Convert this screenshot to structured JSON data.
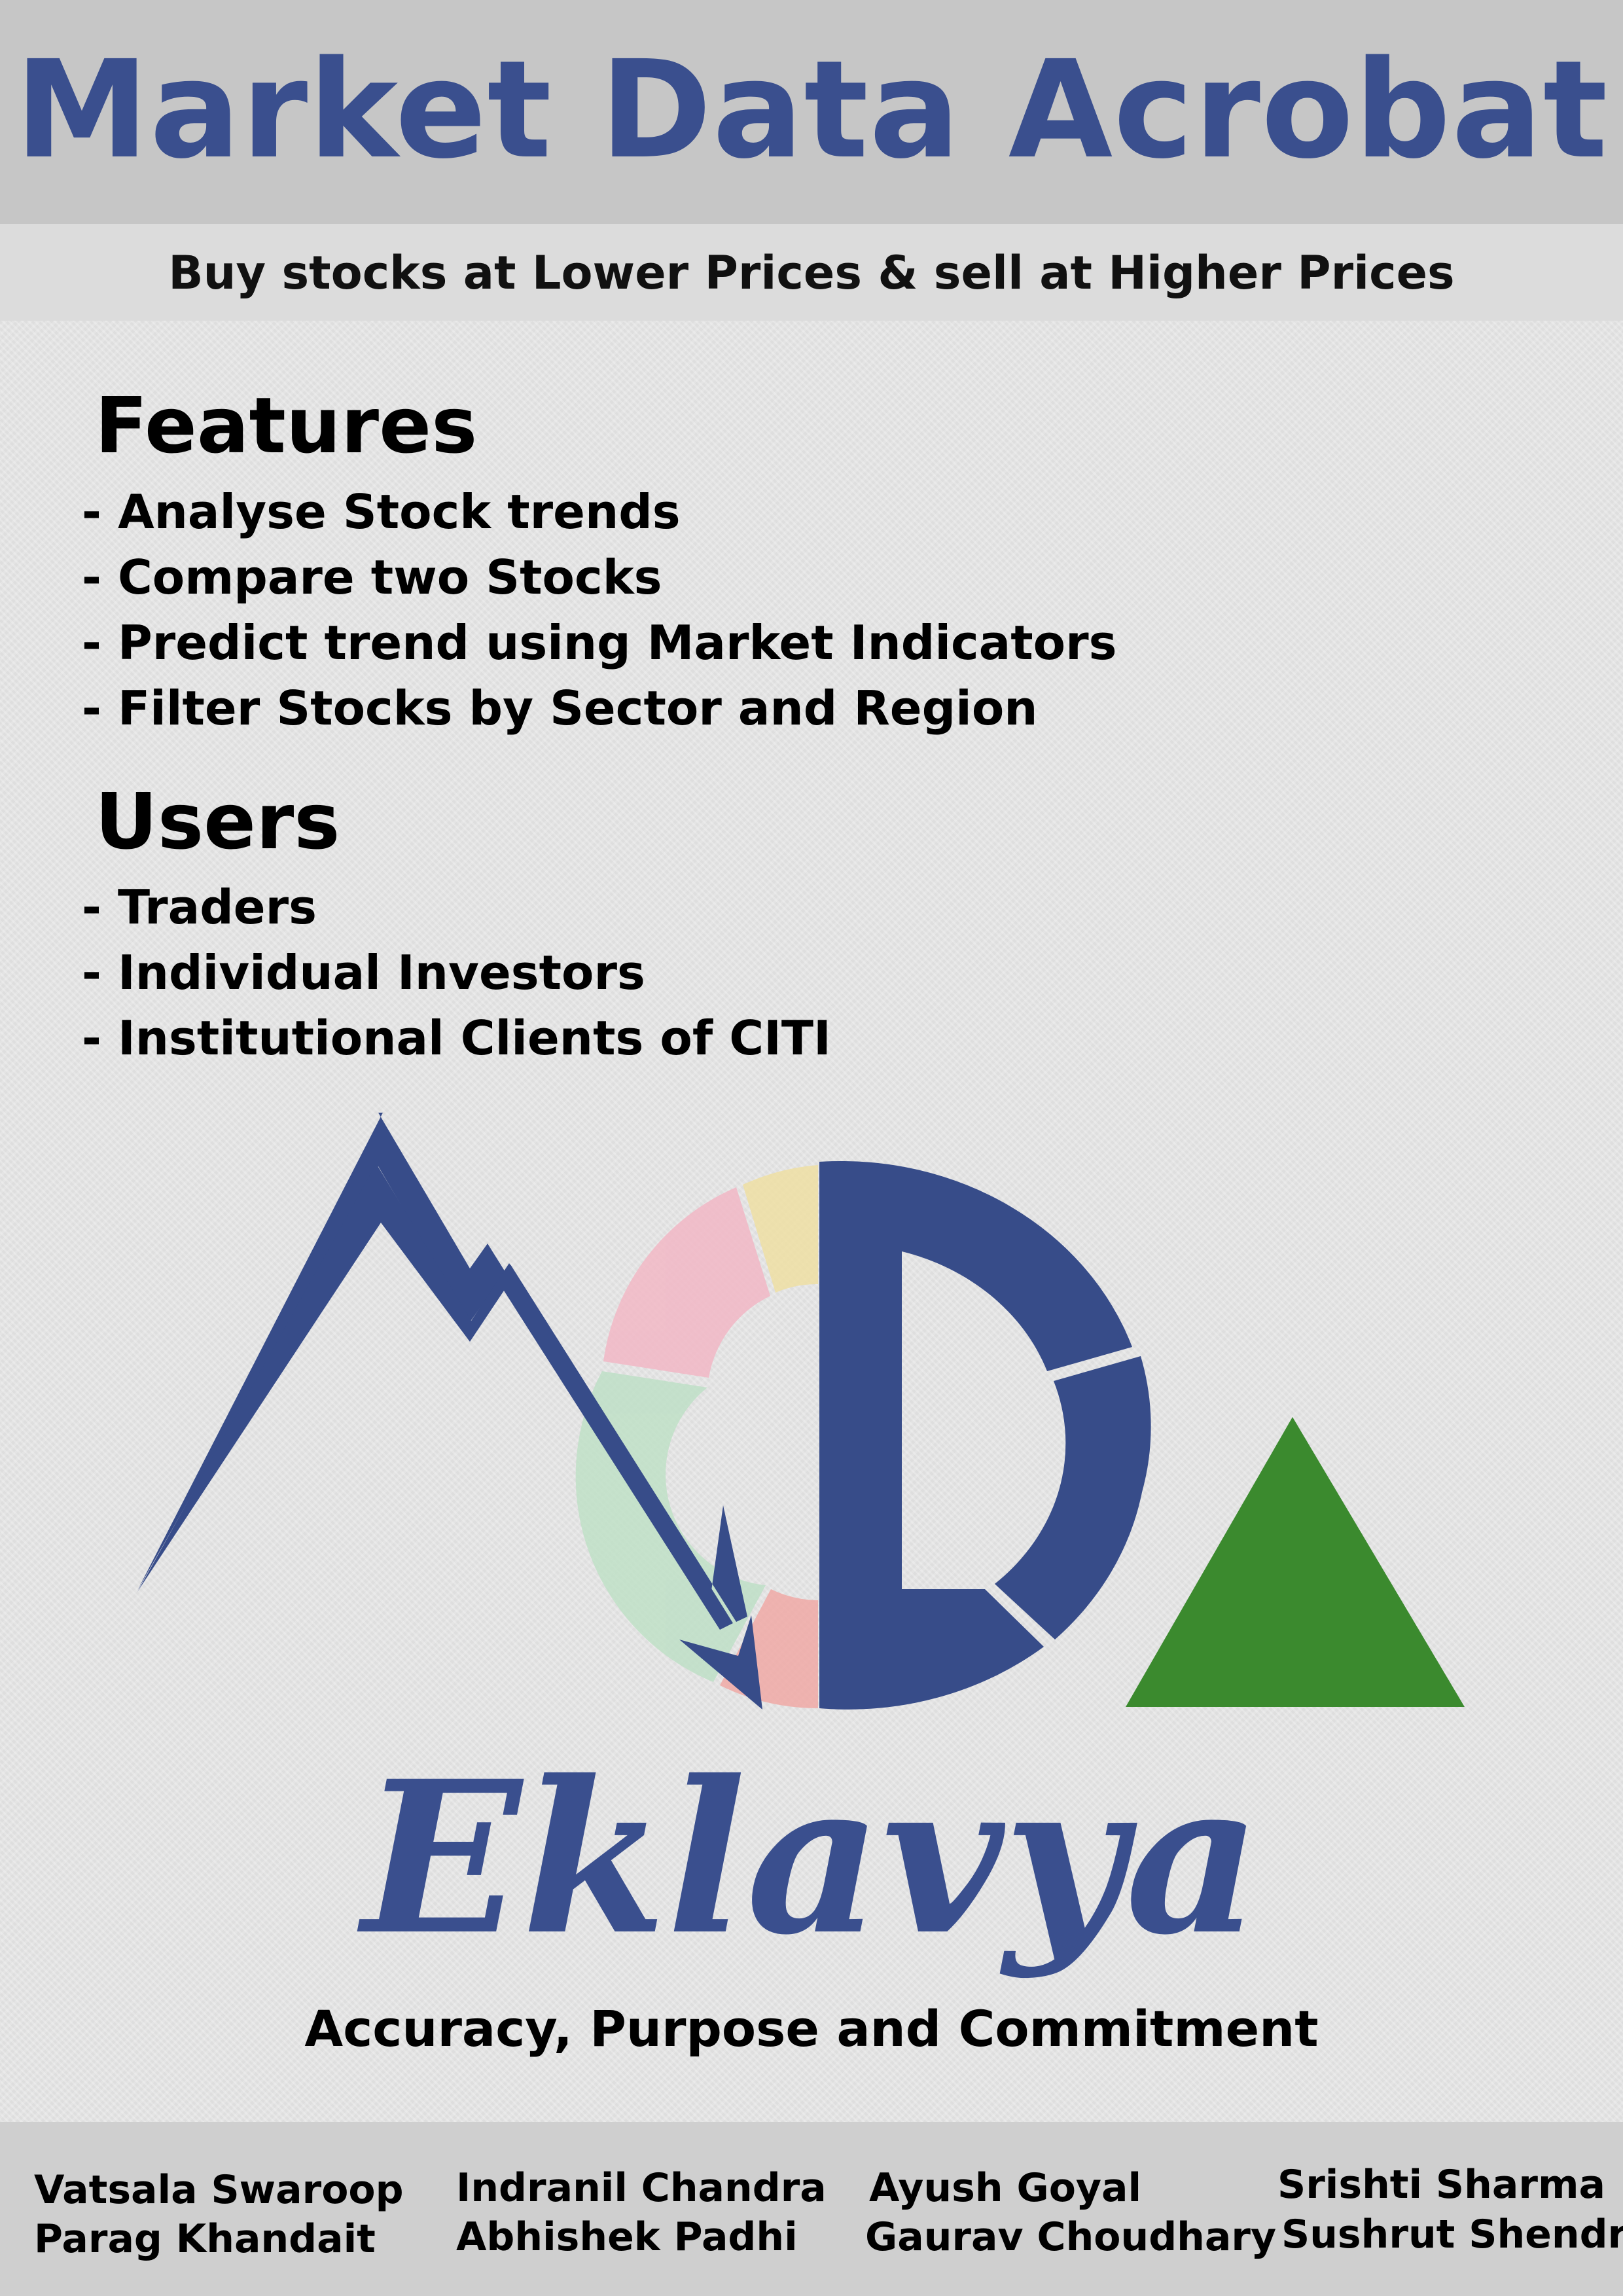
{
  "header": {
    "title": "Market Data Acrobat",
    "tagline": "Buy stocks at Lower Prices & sell at Higher Prices"
  },
  "features": {
    "heading": "Features",
    "items": [
      "- Analyse Stock trends",
      "- Compare two Stocks",
      "- Predict trend using Market Indicators",
      "- Filter Stocks by Sector and Region"
    ]
  },
  "users": {
    "heading": "Users",
    "items": [
      "- Traders",
      "- Individual Investors",
      "- Institutional Clients of CITI"
    ]
  },
  "logo": {
    "icon": "mda-logo-icon",
    "colors": {
      "blue": "#374c89",
      "green": "#3b8a2e",
      "pink": "#f2b8c6",
      "yellow": "#efe0a4",
      "mint": "#bfe0c7",
      "salmon": "#f0aaa6"
    }
  },
  "brand": {
    "name": "Eklavya",
    "motto": "Accuracy, Purpose and Commitment"
  },
  "team": {
    "members": [
      "Vatsala Swaroop",
      "Parag Khandait",
      "Indranil Chandra",
      "Abhishek Padhi",
      "Ayush Goyal",
      "Gaurav Choudhary",
      "Srishti Sharma",
      "Sushrut Shendre"
    ]
  }
}
